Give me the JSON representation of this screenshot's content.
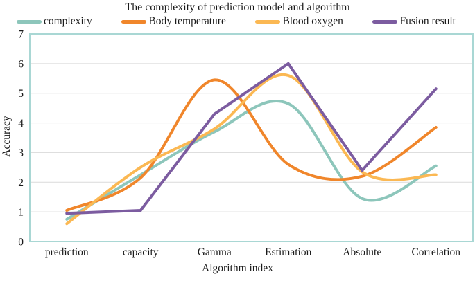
{
  "title": "The complexity of prediction model and algorithm",
  "chart_data": {
    "type": "line",
    "title": "The complexity of prediction model and algorithm",
    "categories": [
      "prediction",
      "capacity",
      "Gamma",
      "Estimation",
      "Absolute",
      "Correlation"
    ],
    "series": [
      {
        "name": "complexity",
        "color": "#8DC6BB",
        "smooth": true,
        "values": [
          0.75,
          2.25,
          3.7,
          4.65,
          1.45,
          2.55
        ]
      },
      {
        "name": "Body temperature",
        "color": "#F0862B",
        "smooth": true,
        "values": [
          1.05,
          2.15,
          5.45,
          2.6,
          2.2,
          3.85
        ]
      },
      {
        "name": "Blood oxygen",
        "color": "#FBB853",
        "smooth": true,
        "values": [
          0.6,
          2.5,
          3.8,
          5.6,
          2.35,
          2.25
        ]
      },
      {
        "name": "Fusion result",
        "color": "#7C5CA0",
        "smooth": false,
        "values": [
          0.95,
          1.05,
          4.3,
          6.0,
          2.4,
          5.15
        ]
      }
    ],
    "xlabel": "Algorithm index",
    "ylabel": "Accuracy",
    "ylim": [
      0,
      7
    ],
    "yticks": [
      0,
      1,
      2,
      3,
      4,
      5,
      6,
      7
    ],
    "grid": true,
    "legend_position": "top",
    "plot_border_color": "#A9D7D4",
    "gridline_color": "#DADADA"
  }
}
